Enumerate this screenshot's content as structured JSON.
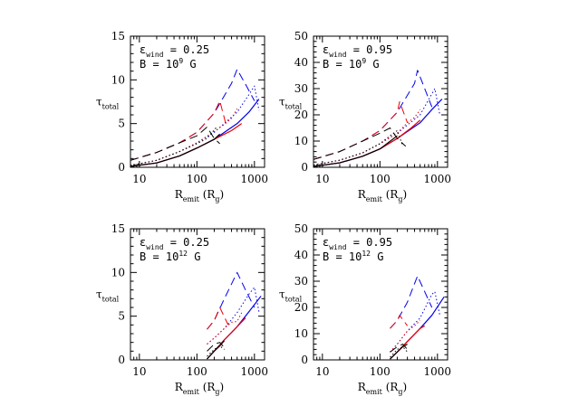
{
  "chart_data": [
    {
      "type": "line",
      "panel": "top-left",
      "annotation": {
        "eps_symbol": "ε",
        "eps_sub": "wind",
        "eps_value": "= 0.25",
        "b_prefix": "B = 10",
        "b_exp": "9",
        "b_unit": "G"
      },
      "xlabel": {
        "main": "R",
        "sub": "emit",
        "unit": "(R",
        "unit_sub": "g",
        "close": ")"
      },
      "ylabel": {
        "main": "τ",
        "sub": "total"
      },
      "xscale": "log",
      "xlim": [
        7,
        1500
      ],
      "ylim": [
        0,
        15
      ],
      "xticks": [
        {
          "v": 10,
          "label": "10"
        },
        {
          "v": 100,
          "label": "100"
        },
        {
          "v": 1000,
          "label": "1000"
        }
      ],
      "yticks": [
        {
          "v": 0,
          "label": "0"
        },
        {
          "v": 5,
          "label": "5"
        },
        {
          "v": 10,
          "label": "10"
        },
        {
          "v": 15,
          "label": "15"
        }
      ],
      "series": [
        {
          "name": "blue-dashed",
          "color": "#0000ee",
          "style": "dashed",
          "x": [
            7,
            20,
            50,
            100,
            200,
            400,
            500,
            700,
            1000
          ],
          "y": [
            0.8,
            1.7,
            2.8,
            4.0,
            6.2,
            9.6,
            11.2,
            9.5,
            7.6
          ]
        },
        {
          "name": "blue-dotted",
          "color": "#0000ee",
          "style": "dotted",
          "x": [
            7,
            20,
            50,
            100,
            200,
            500,
            800,
            1000,
            1200
          ],
          "y": [
            0.2,
            0.8,
            1.8,
            2.8,
            4.0,
            6.3,
            8.3,
            9.3,
            6.5
          ]
        },
        {
          "name": "blue-solid",
          "color": "#0000ee",
          "style": "solid",
          "x": [
            7,
            20,
            50,
            100,
            200,
            500,
            800,
            1200
          ],
          "y": [
            0.1,
            0.5,
            1.3,
            2.2,
            3.2,
            5.0,
            6.3,
            7.8
          ]
        },
        {
          "name": "red-dashed",
          "color": "#ee0000",
          "style": "dashed",
          "x": [
            7,
            20,
            50,
            100,
            200,
            250,
            320
          ],
          "y": [
            0.8,
            1.7,
            2.8,
            4.0,
            6.2,
            7.6,
            4.9
          ]
        },
        {
          "name": "red-dotted",
          "color": "#ee0000",
          "style": "dotted",
          "x": [
            7,
            20,
            50,
            100,
            200,
            300,
            400,
            500
          ],
          "y": [
            0.2,
            0.8,
            1.8,
            2.8,
            4.1,
            4.9,
            5.6,
            6.7
          ]
        },
        {
          "name": "red-solid",
          "color": "#ee0000",
          "style": "solid",
          "x": [
            7,
            20,
            50,
            100,
            200,
            400,
            600
          ],
          "y": [
            0.1,
            0.5,
            1.3,
            2.2,
            3.2,
            4.2,
            5.0
          ]
        },
        {
          "name": "black-dashed",
          "color": "#000000",
          "style": "dashed",
          "x": [
            7,
            20,
            50,
            100,
            150,
            200,
            250
          ],
          "y": [
            0.8,
            1.7,
            2.8,
            3.6,
            4.6,
            3.3,
            2.7
          ]
        },
        {
          "name": "black-dotted",
          "color": "#000000",
          "style": "dotted",
          "x": [
            7,
            20,
            50,
            100,
            150,
            220
          ],
          "y": [
            0.2,
            0.8,
            1.8,
            2.7,
            3.3,
            4.6
          ]
        },
        {
          "name": "black-solid",
          "color": "#000000",
          "style": "solid",
          "x": [
            7,
            20,
            50,
            100,
            200,
            250
          ],
          "y": [
            0.1,
            0.5,
            1.3,
            2.2,
            3.2,
            3.8
          ]
        }
      ]
    },
    {
      "type": "line",
      "panel": "top-right",
      "annotation": {
        "eps_symbol": "ε",
        "eps_sub": "wind",
        "eps_value": "= 0.95",
        "b_prefix": "B = 10",
        "b_exp": "9",
        "b_unit": "G"
      },
      "xlabel": {
        "main": "R",
        "sub": "emit",
        "unit": "(R",
        "unit_sub": "g",
        "close": ")"
      },
      "ylabel": {
        "main": "τ",
        "sub": "total"
      },
      "xscale": "log",
      "xlim": [
        7,
        1500
      ],
      "ylim": [
        0,
        50
      ],
      "xticks": [
        {
          "v": 10,
          "label": "10"
        },
        {
          "v": 100,
          "label": "100"
        },
        {
          "v": 1000,
          "label": "1000"
        }
      ],
      "yticks": [
        {
          "v": 0,
          "label": "0"
        },
        {
          "v": 10,
          "label": "10"
        },
        {
          "v": 20,
          "label": "20"
        },
        {
          "v": 30,
          "label": "30"
        },
        {
          "v": 40,
          "label": "40"
        },
        {
          "v": 50,
          "label": "50"
        }
      ],
      "series": [
        {
          "name": "blue-dashed",
          "color": "#0000ee",
          "style": "dashed",
          "x": [
            7,
            20,
            50,
            100,
            200,
            400,
            450,
            600,
            800
          ],
          "y": [
            3,
            6,
            10,
            14,
            21,
            32,
            37,
            30,
            23
          ]
        },
        {
          "name": "blue-dotted",
          "color": "#0000ee",
          "style": "dotted",
          "x": [
            7,
            20,
            50,
            100,
            200,
            500,
            800,
            900,
            1100
          ],
          "y": [
            0.8,
            2.7,
            5.5,
            9,
            13,
            20,
            28,
            30,
            20
          ]
        },
        {
          "name": "blue-solid",
          "color": "#0000ee",
          "style": "solid",
          "x": [
            7,
            20,
            50,
            100,
            200,
            500,
            800,
            1200
          ],
          "y": [
            0.3,
            1.7,
            4.2,
            7,
            11,
            17,
            22,
            26
          ]
        },
        {
          "name": "red-dashed",
          "color": "#ee0000",
          "style": "dashed",
          "x": [
            7,
            20,
            50,
            100,
            200,
            220,
            300
          ],
          "y": [
            3,
            6,
            10,
            14,
            21,
            25,
            17
          ]
        },
        {
          "name": "red-dotted",
          "color": "#ee0000",
          "style": "dotted",
          "x": [
            7,
            20,
            50,
            100,
            200,
            300,
            400,
            500
          ],
          "y": [
            0.8,
            2.7,
            5.5,
            9,
            13,
            17,
            19,
            22
          ]
        },
        {
          "name": "red-solid",
          "color": "#ee0000",
          "style": "solid",
          "x": [
            7,
            20,
            50,
            100,
            200,
            350,
            500
          ],
          "y": [
            0.3,
            1.7,
            4.2,
            7,
            11,
            15,
            18
          ]
        },
        {
          "name": "black-dashed",
          "color": "#000000",
          "style": "dashed",
          "x": [
            7,
            20,
            50,
            100,
            150,
            200,
            280
          ],
          "y": [
            3,
            6,
            10,
            13,
            15,
            11,
            8
          ]
        },
        {
          "name": "black-dotted",
          "color": "#000000",
          "style": "dotted",
          "x": [
            7,
            20,
            50,
            100,
            150,
            200,
            250
          ],
          "y": [
            0.8,
            2.7,
            5.5,
            9,
            12,
            14,
            8
          ]
        },
        {
          "name": "black-solid",
          "color": "#000000",
          "style": "solid",
          "x": [
            7,
            20,
            50,
            100,
            200
          ],
          "y": [
            0.3,
            1.7,
            4.2,
            7,
            12
          ]
        }
      ]
    },
    {
      "type": "line",
      "panel": "bottom-left",
      "annotation": {
        "eps_symbol": "ε",
        "eps_sub": "wind",
        "eps_value": "= 0.25",
        "b_prefix": "B = 10",
        "b_exp": "12",
        "b_unit": "G"
      },
      "xlabel": {
        "main": "R",
        "sub": "emit",
        "unit": "(R",
        "unit_sub": "g",
        "close": ")"
      },
      "ylabel": {
        "main": "τ",
        "sub": "total"
      },
      "xscale": "log",
      "xlim": [
        7,
        1500
      ],
      "ylim": [
        0,
        15
      ],
      "xticks": [
        {
          "v": 10,
          "label": "10"
        },
        {
          "v": 100,
          "label": "100"
        },
        {
          "v": 1000,
          "label": "1000"
        }
      ],
      "yticks": [
        {
          "v": 0,
          "label": "0"
        },
        {
          "v": 5,
          "label": "5"
        },
        {
          "v": 10,
          "label": "10"
        },
        {
          "v": 15,
          "label": "15"
        }
      ],
      "series": [
        {
          "name": "blue-dashed",
          "color": "#0000ee",
          "style": "dashed",
          "x": [
            150,
            200,
            300,
            500,
            700,
            1000
          ],
          "y": [
            3.5,
            4.5,
            7.0,
            10.0,
            8.0,
            6.0
          ]
        },
        {
          "name": "blue-dotted",
          "color": "#0000ee",
          "style": "dotted",
          "x": [
            150,
            200,
            300,
            500,
            800,
            1000,
            1200
          ],
          "y": [
            1.8,
            2.5,
            3.6,
            5.4,
            7.5,
            8.3,
            5.5
          ]
        },
        {
          "name": "blue-solid",
          "color": "#0000ee",
          "style": "solid",
          "x": [
            150,
            200,
            300,
            500,
            800,
            1300
          ],
          "y": [
            0.1,
            1.0,
            2.3,
            3.8,
            5.5,
            7.3
          ]
        },
        {
          "name": "red-dashed",
          "color": "#ee0000",
          "style": "dashed",
          "x": [
            150,
            200,
            250,
            350
          ],
          "y": [
            3.5,
            4.5,
            6.0,
            4.0
          ]
        },
        {
          "name": "red-dotted",
          "color": "#ee0000",
          "style": "dotted",
          "x": [
            150,
            200,
            300,
            400,
            500,
            600
          ],
          "y": [
            1.8,
            2.5,
            3.6,
            4.3,
            4.4,
            5.4
          ]
        },
        {
          "name": "red-solid",
          "color": "#ee0000",
          "style": "solid",
          "x": [
            150,
            200,
            300,
            500,
            700
          ],
          "y": [
            0.1,
            1.0,
            2.3,
            3.8,
            4.8
          ]
        },
        {
          "name": "black-dashed",
          "color": "#000000",
          "style": "dashed",
          "x": [
            150,
            200,
            250,
            300
          ],
          "y": [
            1.0,
            1.8,
            2.0,
            1.4
          ]
        },
        {
          "name": "black-dotted",
          "color": "#000000",
          "style": "dotted",
          "x": [
            150,
            200,
            250,
            300
          ],
          "y": [
            0.4,
            1.2,
            1.6,
            1.2
          ]
        },
        {
          "name": "black-solid",
          "color": "#000000",
          "style": "solid",
          "x": [
            150,
            200,
            250,
            300
          ],
          "y": [
            0.1,
            1.0,
            1.6,
            2.2
          ]
        }
      ]
    },
    {
      "type": "line",
      "panel": "bottom-right",
      "annotation": {
        "eps_symbol": "ε",
        "eps_sub": "wind",
        "eps_value": "= 0.95",
        "b_prefix": "B = 10",
        "b_exp": "12",
        "b_unit": "G"
      },
      "xlabel": {
        "main": "R",
        "sub": "emit",
        "unit": "(R",
        "unit_sub": "g",
        "close": ")"
      },
      "ylabel": {
        "main": "τ",
        "sub": "total"
      },
      "xscale": "log",
      "xlim": [
        7,
        1500
      ],
      "ylim": [
        0,
        50
      ],
      "xticks": [
        {
          "v": 10,
          "label": "10"
        },
        {
          "v": 100,
          "label": "100"
        },
        {
          "v": 1000,
          "label": "1000"
        }
      ],
      "yticks": [
        {
          "v": 0,
          "label": "0"
        },
        {
          "v": 10,
          "label": "10"
        },
        {
          "v": 20,
          "label": "20"
        },
        {
          "v": 30,
          "label": "30"
        },
        {
          "v": 40,
          "label": "40"
        },
        {
          "v": 50,
          "label": "50"
        }
      ],
      "series": [
        {
          "name": "blue-dashed",
          "color": "#0000ee",
          "style": "dashed",
          "x": [
            150,
            200,
            300,
            450,
            600,
            800
          ],
          "y": [
            12,
            15,
            22,
            32,
            26,
            20
          ]
        },
        {
          "name": "blue-dotted",
          "color": "#0000ee",
          "style": "dotted",
          "x": [
            150,
            200,
            300,
            500,
            800,
            900,
            1100
          ],
          "y": [
            3,
            6,
            11,
            16,
            25,
            26,
            17
          ]
        },
        {
          "name": "blue-solid",
          "color": "#0000ee",
          "style": "solid",
          "x": [
            150,
            200,
            300,
            500,
            800,
            1300
          ],
          "y": [
            0.3,
            3,
            7,
            12,
            17,
            24
          ]
        },
        {
          "name": "red-dashed",
          "color": "#ee0000",
          "style": "dashed",
          "x": [
            150,
            200,
            220,
            300
          ],
          "y": [
            12,
            15,
            17,
            13
          ]
        },
        {
          "name": "red-dotted",
          "color": "#ee0000",
          "style": "dotted",
          "x": [
            150,
            200,
            300,
            400,
            500
          ],
          "y": [
            3,
            6,
            11,
            13,
            15
          ]
        },
        {
          "name": "red-solid",
          "color": "#ee0000",
          "style": "solid",
          "x": [
            150,
            200,
            300,
            500,
            600
          ],
          "y": [
            0.3,
            3,
            7,
            12,
            13
          ]
        },
        {
          "name": "black-dashed",
          "color": "#000000",
          "style": "dashed",
          "x": [
            150,
            200,
            250,
            300
          ],
          "y": [
            3,
            5,
            6,
            4
          ]
        },
        {
          "name": "black-dotted",
          "color": "#000000",
          "style": "dotted",
          "x": [
            150,
            200,
            250,
            300
          ],
          "y": [
            1,
            4,
            5,
            3
          ]
        },
        {
          "name": "black-solid",
          "color": "#000000",
          "style": "solid",
          "x": [
            150,
            200,
            250,
            300
          ],
          "y": [
            0.3,
            3,
            5,
            6
          ]
        }
      ]
    }
  ]
}
